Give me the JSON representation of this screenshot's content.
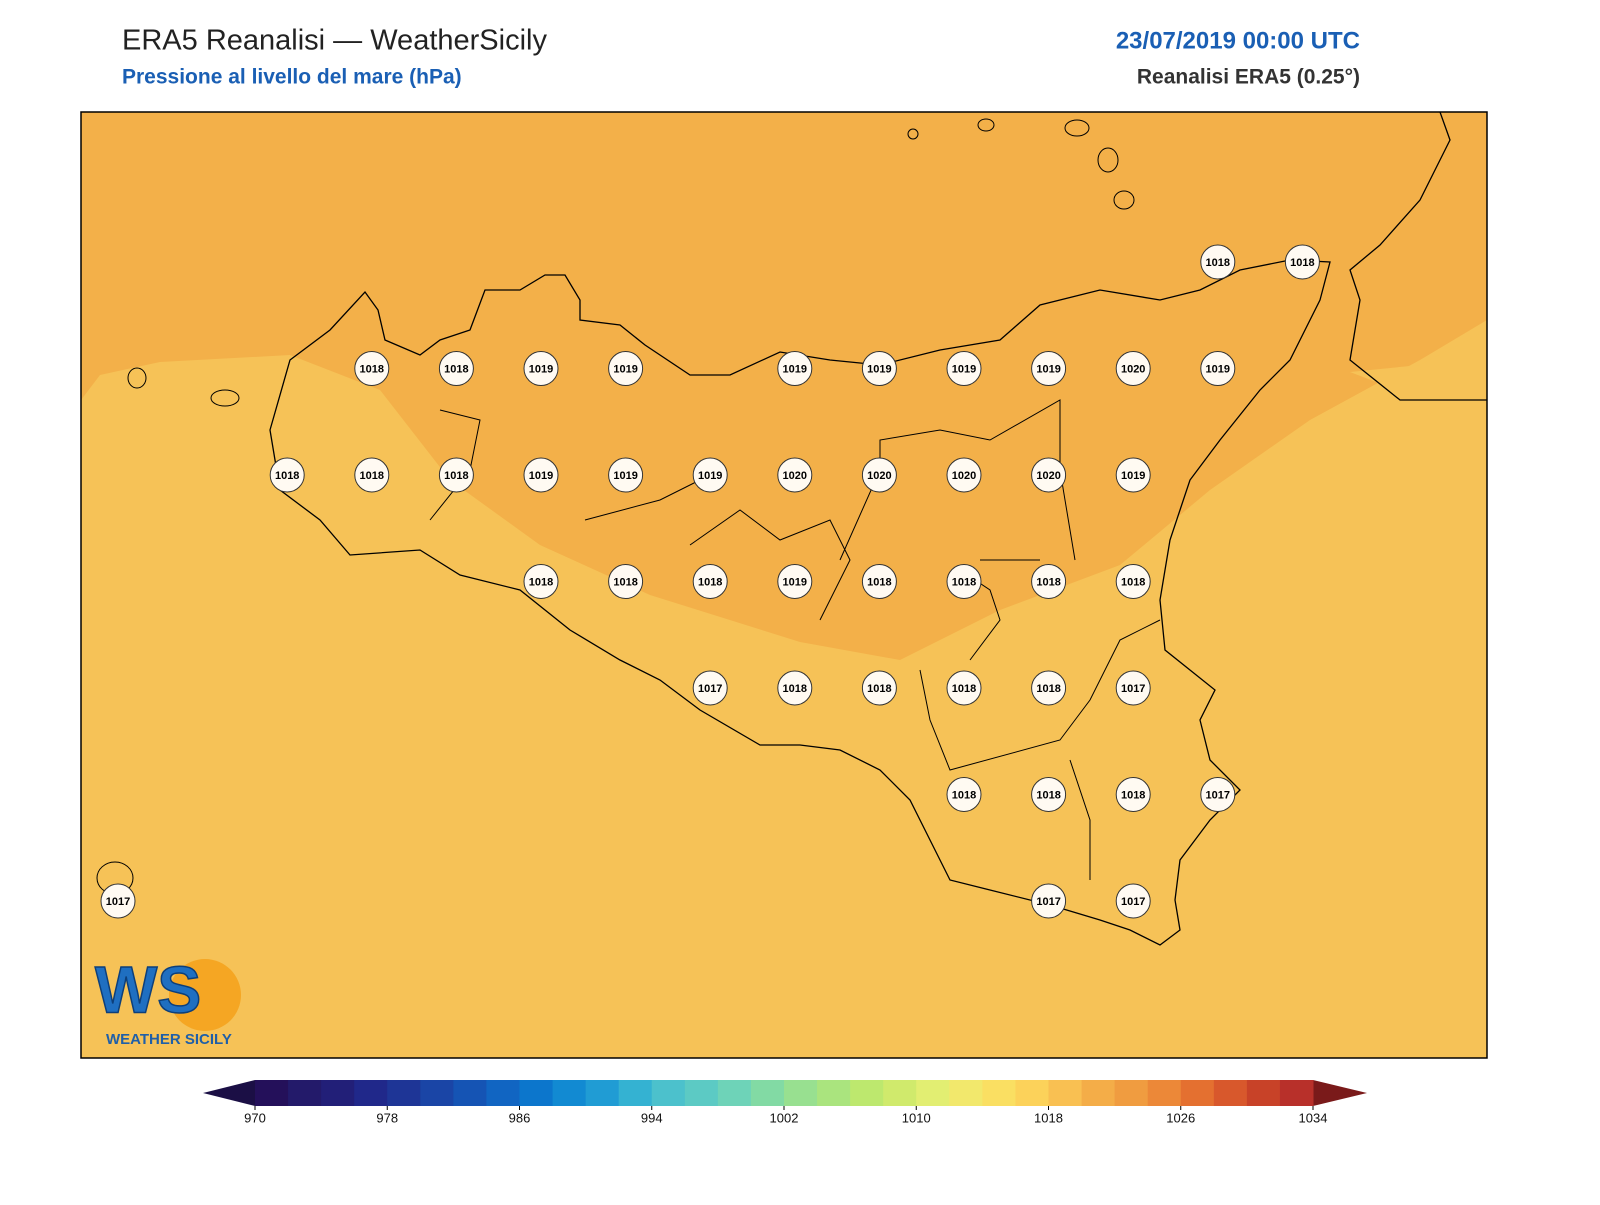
{
  "header": {
    "title": "ERA5 Reanalisi — WeatherSicily",
    "subtitle": "Pressione al livello del mare (hPa)",
    "date": "23/07/2019 00:00 UTC",
    "source": "Reanalisi ERA5 (0.25°)"
  },
  "stations": [
    [
      null,
      null,
      null,
      null,
      null,
      null,
      null,
      null,
      null,
      null,
      null,
      null,
      null,
      1018,
      1018
    ],
    [
      null,
      null,
      null,
      1018,
      1018,
      1019,
      1019,
      null,
      1019,
      1019,
      1019,
      1019,
      1020,
      1019,
      null
    ],
    [
      null,
      null,
      1018,
      1018,
      1018,
      1019,
      1019,
      1019,
      1020,
      1020,
      1020,
      1020,
      1019,
      null,
      null
    ],
    [
      null,
      null,
      null,
      null,
      null,
      1018,
      1018,
      1018,
      1019,
      1018,
      1018,
      1018,
      1018,
      null,
      null
    ],
    [
      null,
      null,
      null,
      null,
      null,
      null,
      null,
      1017,
      1018,
      1018,
      1018,
      1018,
      1017,
      null,
      null
    ],
    [
      null,
      null,
      null,
      null,
      null,
      null,
      null,
      null,
      null,
      null,
      1018,
      1018,
      1018,
      1017,
      null
    ],
    [
      1017,
      null,
      null,
      null,
      null,
      null,
      null,
      null,
      null,
      null,
      null,
      1017,
      1017,
      null,
      null
    ]
  ],
  "colorbar": {
    "range": [
      970,
      1034
    ],
    "ticks": [
      970,
      978,
      986,
      994,
      1002,
      1010,
      1018,
      1026,
      1034
    ],
    "under_color": "#1b0f45",
    "over_color": "#7a1a1a",
    "colors": [
      "#24105a",
      "#231a6a",
      "#221f78",
      "#20288a",
      "#1e3596",
      "#1a45a6",
      "#1554b4",
      "#1165c2",
      "#0c76cc",
      "#128ad2",
      "#209cd4",
      "#34b2d2",
      "#4cc1cc",
      "#5ccac4",
      "#6ed3b8",
      "#82daa4",
      "#98e090",
      "#aae47e",
      "#bde86e",
      "#d0ea6c",
      "#e2ee72",
      "#f2e86c",
      "#fadf62",
      "#fcd25a",
      "#f9c052",
      "#f4ad48",
      "#f09c40",
      "#ec8838",
      "#e47030",
      "#d8582c",
      "#c84228",
      "#b8302a"
    ]
  },
  "logo": {
    "text": "WS",
    "tagline": "WEATHER SICILY"
  }
}
